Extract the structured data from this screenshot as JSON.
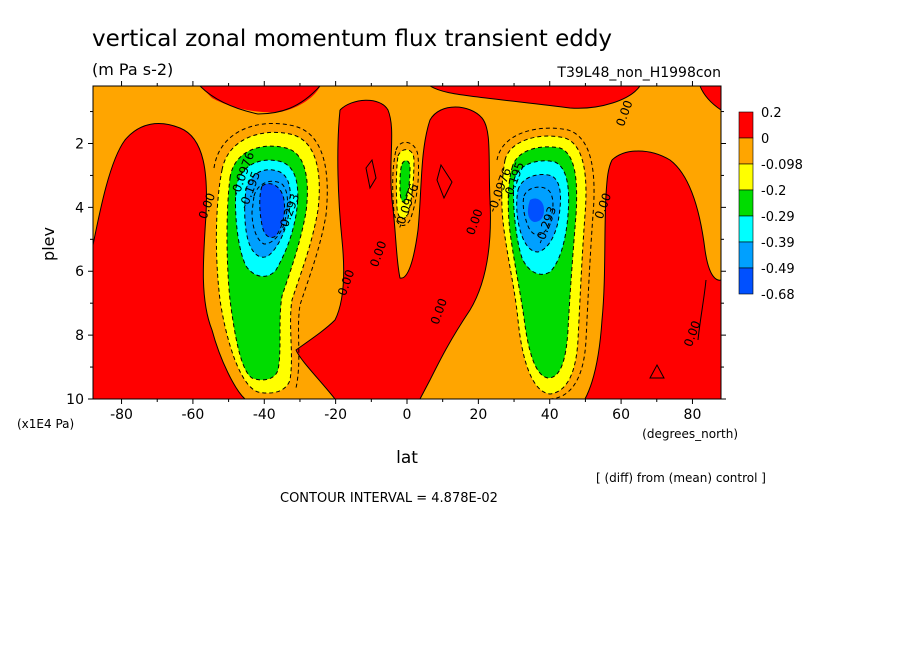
{
  "chart_data": {
    "type": "heatmap",
    "title": "vertical zonal momentum flux transient eddy",
    "units": "(m Pa s-2)",
    "experiment": "T39L48_non_H1998con",
    "xlabel": "lat",
    "x_units": "(degrees_north)",
    "ylabel": "plev",
    "y_units": "(x1E4 Pa)",
    "xlim": [
      -88,
      88
    ],
    "ylim": [
      10,
      0.2
    ],
    "x_ticks": [
      -80,
      -60,
      -40,
      -20,
      0,
      20,
      40,
      60,
      80
    ],
    "y_ticks": [
      2,
      4,
      6,
      8,
      10
    ],
    "legend": {
      "placement": "right",
      "levels": [
        "0.2",
        "0",
        "-0.098",
        "-0.2",
        "-0.29",
        "-0.39",
        "-0.49",
        "-0.68"
      ],
      "colors": [
        "#ff0000",
        "#ffa500",
        "#ffff00",
        "#00dc00",
        "#00ffff",
        "#00a0ff",
        "#0050ff"
      ]
    },
    "contour_labels": [
      {
        "text": "0.00",
        "lat": 62,
        "plev": 1.1
      },
      {
        "text": "-0.0976",
        "lat": -45,
        "plev": 3.0
      },
      {
        "text": "-0.195",
        "lat": -43,
        "plev": 3.5
      },
      {
        "text": "0.00",
        "lat": -55,
        "plev": 4.0
      },
      {
        "text": "-0.293",
        "lat": -32,
        "plev": 4.2
      },
      {
        "text": "-0.0976",
        "lat": 1,
        "plev": 4.0
      },
      {
        "text": "0.00",
        "lat": 20,
        "plev": 4.5
      },
      {
        "text": "-0.0976",
        "lat": 27,
        "plev": 3.5
      },
      {
        "text": "-0.195",
        "lat": 31,
        "plev": 3.2
      },
      {
        "text": "-0.293",
        "lat": 40,
        "plev": 4.6
      },
      {
        "text": "0.00",
        "lat": 56,
        "plev": 4.0
      },
      {
        "text": "0.00",
        "lat": -7,
        "plev": 5.5
      },
      {
        "text": "0.00",
        "lat": -16,
        "plev": 6.4
      },
      {
        "text": "0.00",
        "lat": 10,
        "plev": 7.3
      },
      {
        "text": "0.00",
        "lat": 81,
        "plev": 8.0
      }
    ]
  },
  "footer": {
    "diff_note": "[ (diff) from (mean) control ]",
    "contour_interval": "CONTOUR INTERVAL = 4.878E-02"
  }
}
